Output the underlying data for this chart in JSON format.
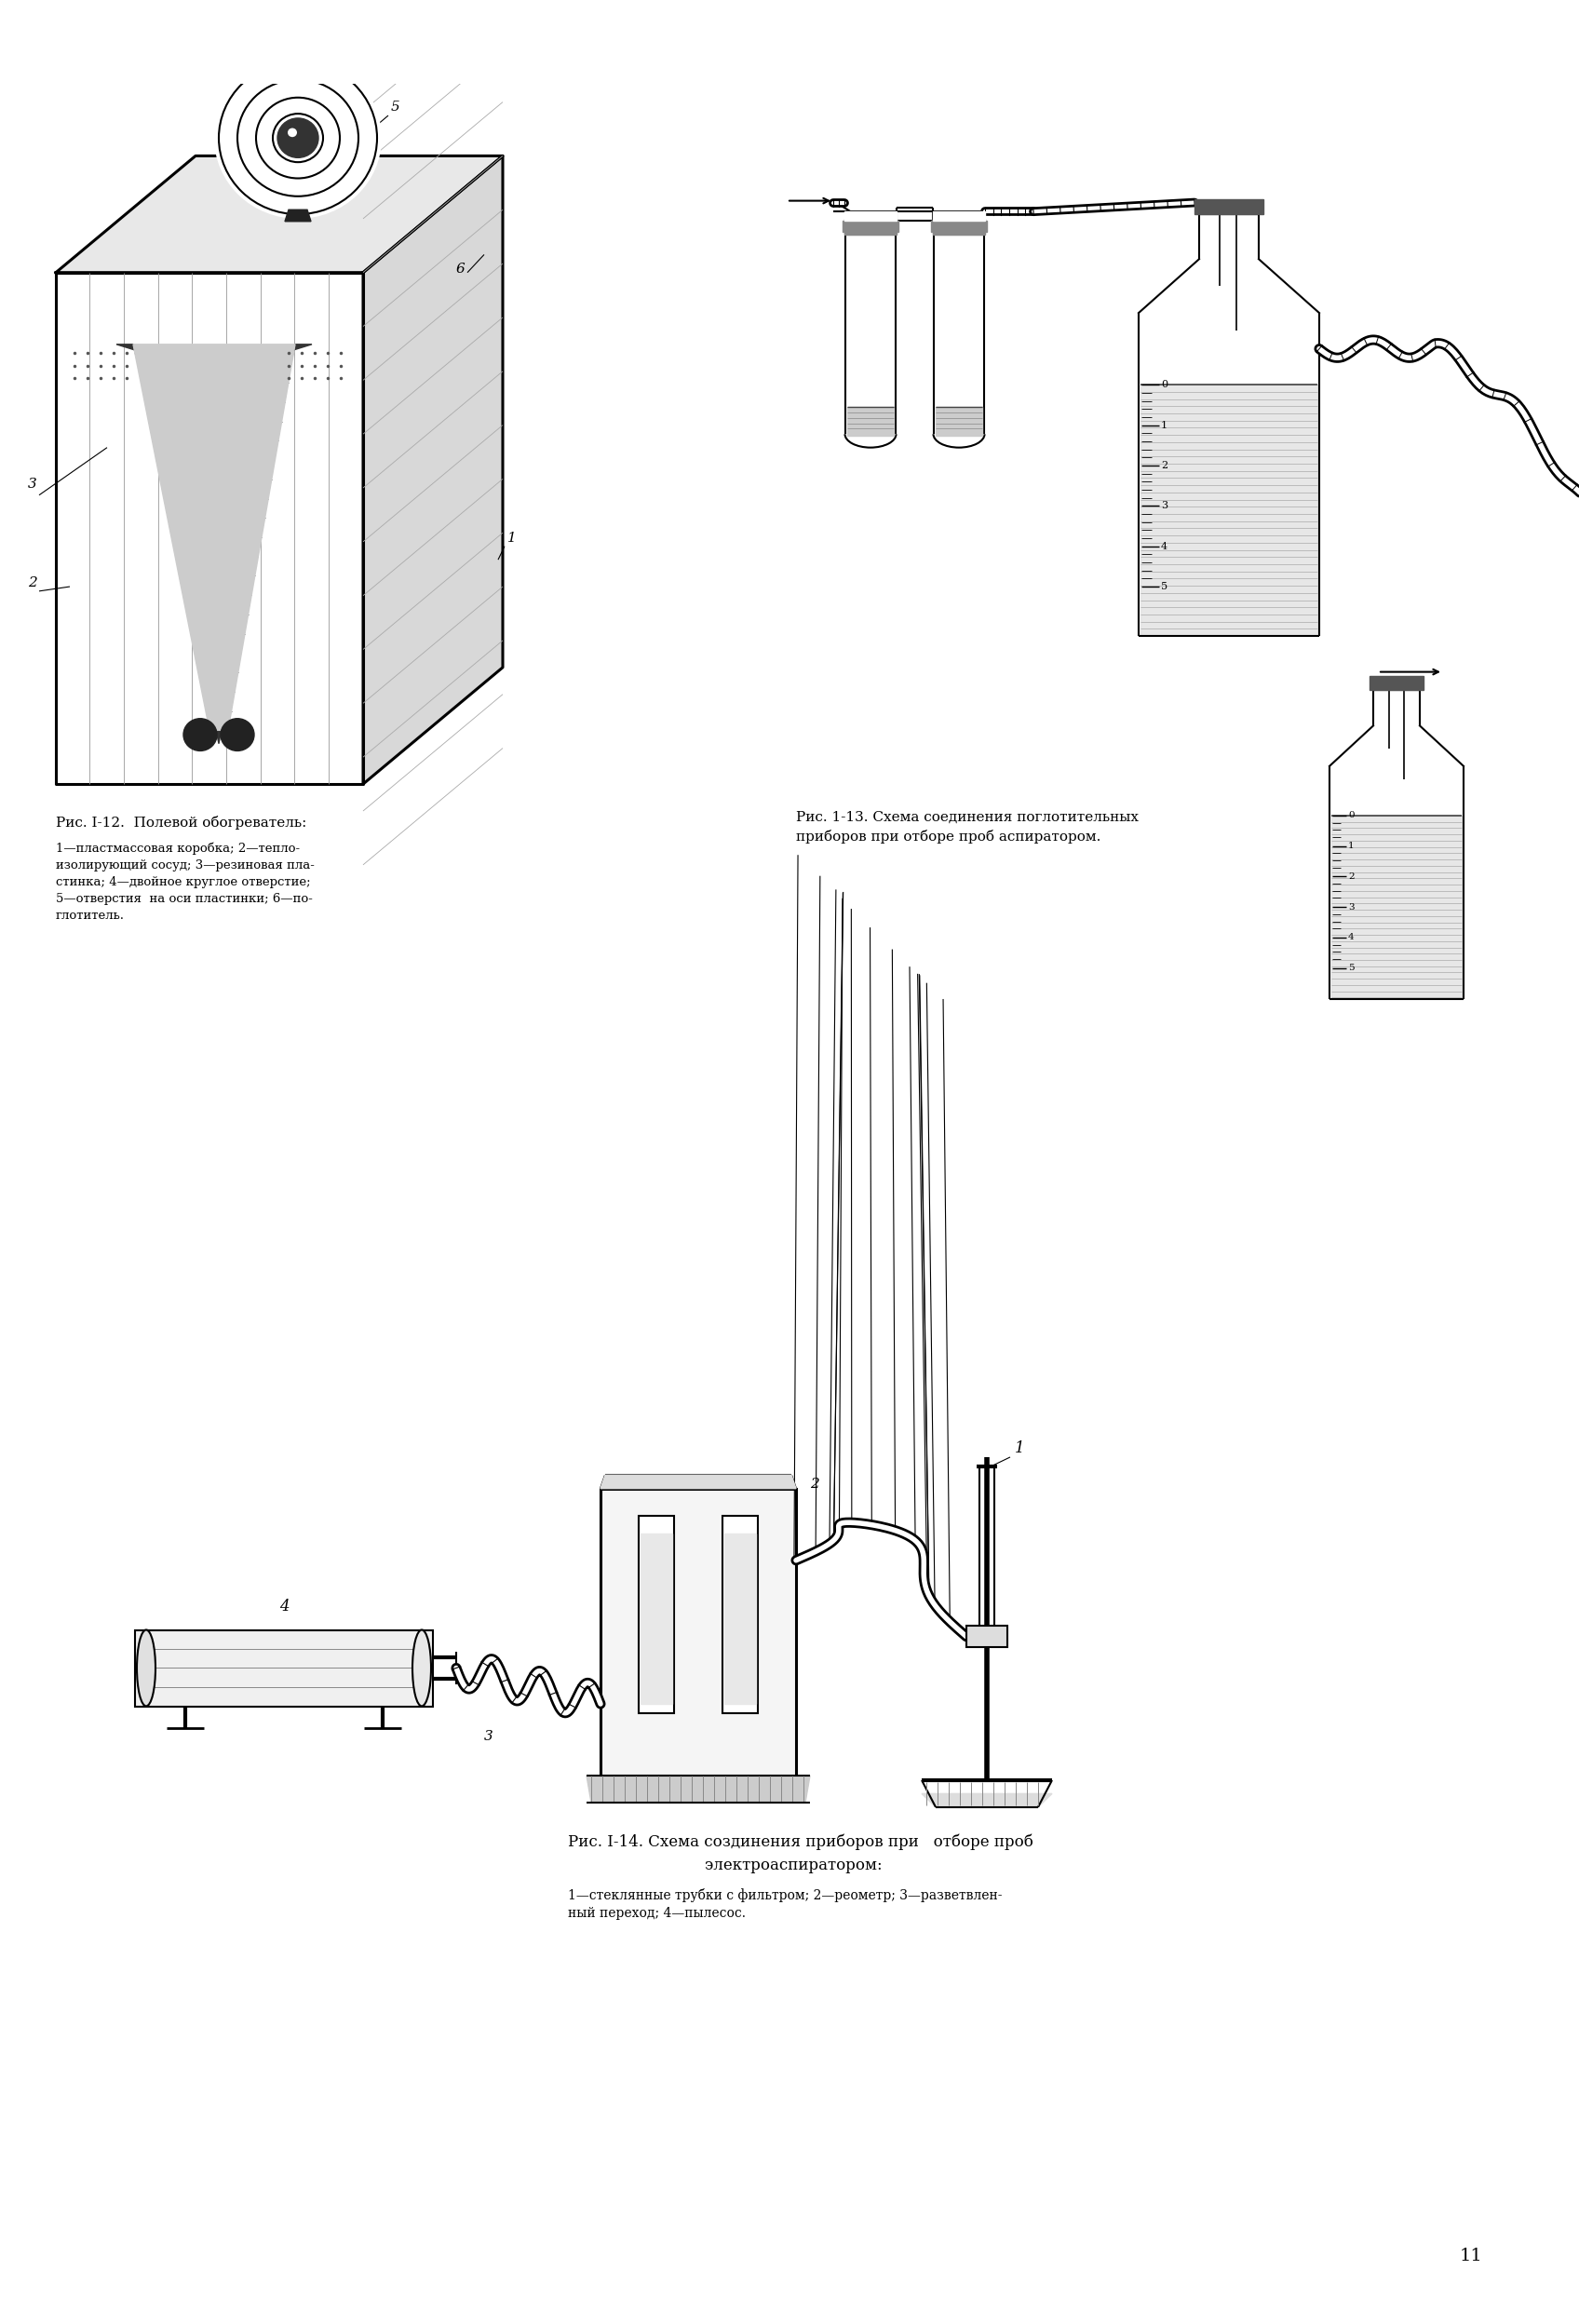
{
  "page_bg": "#ffffff",
  "page_number": "11",
  "fig1_caption": "Рис. I-12.  Полевой обогреватель:",
  "fig1_subcaption": "1—пластмассовая коробка; 2—тепло-\nизолирующий сосуд; 3—резиновая пла-\nстинка; 4—двойное круглое отверстие;\n5—отверстия  на оси пластинки; 6—по-\nглотитель.",
  "fig2_caption": "Рис. 1-13. Схема соединения поглотительных\nприборов при отборе проб аспиратором.",
  "fig3_caption": "Рис. I-14. Схема создинения приборов при   отборе проб\nэлектроаспиратором:",
  "fig3_subcaption": "1—стеклянные трубки с фильтром; 2—реометр; 3—разветвлен-\nный переход; 4—пылесос.",
  "lc": "#000000",
  "lw_main": 1.5,
  "lw_thick": 2.2
}
